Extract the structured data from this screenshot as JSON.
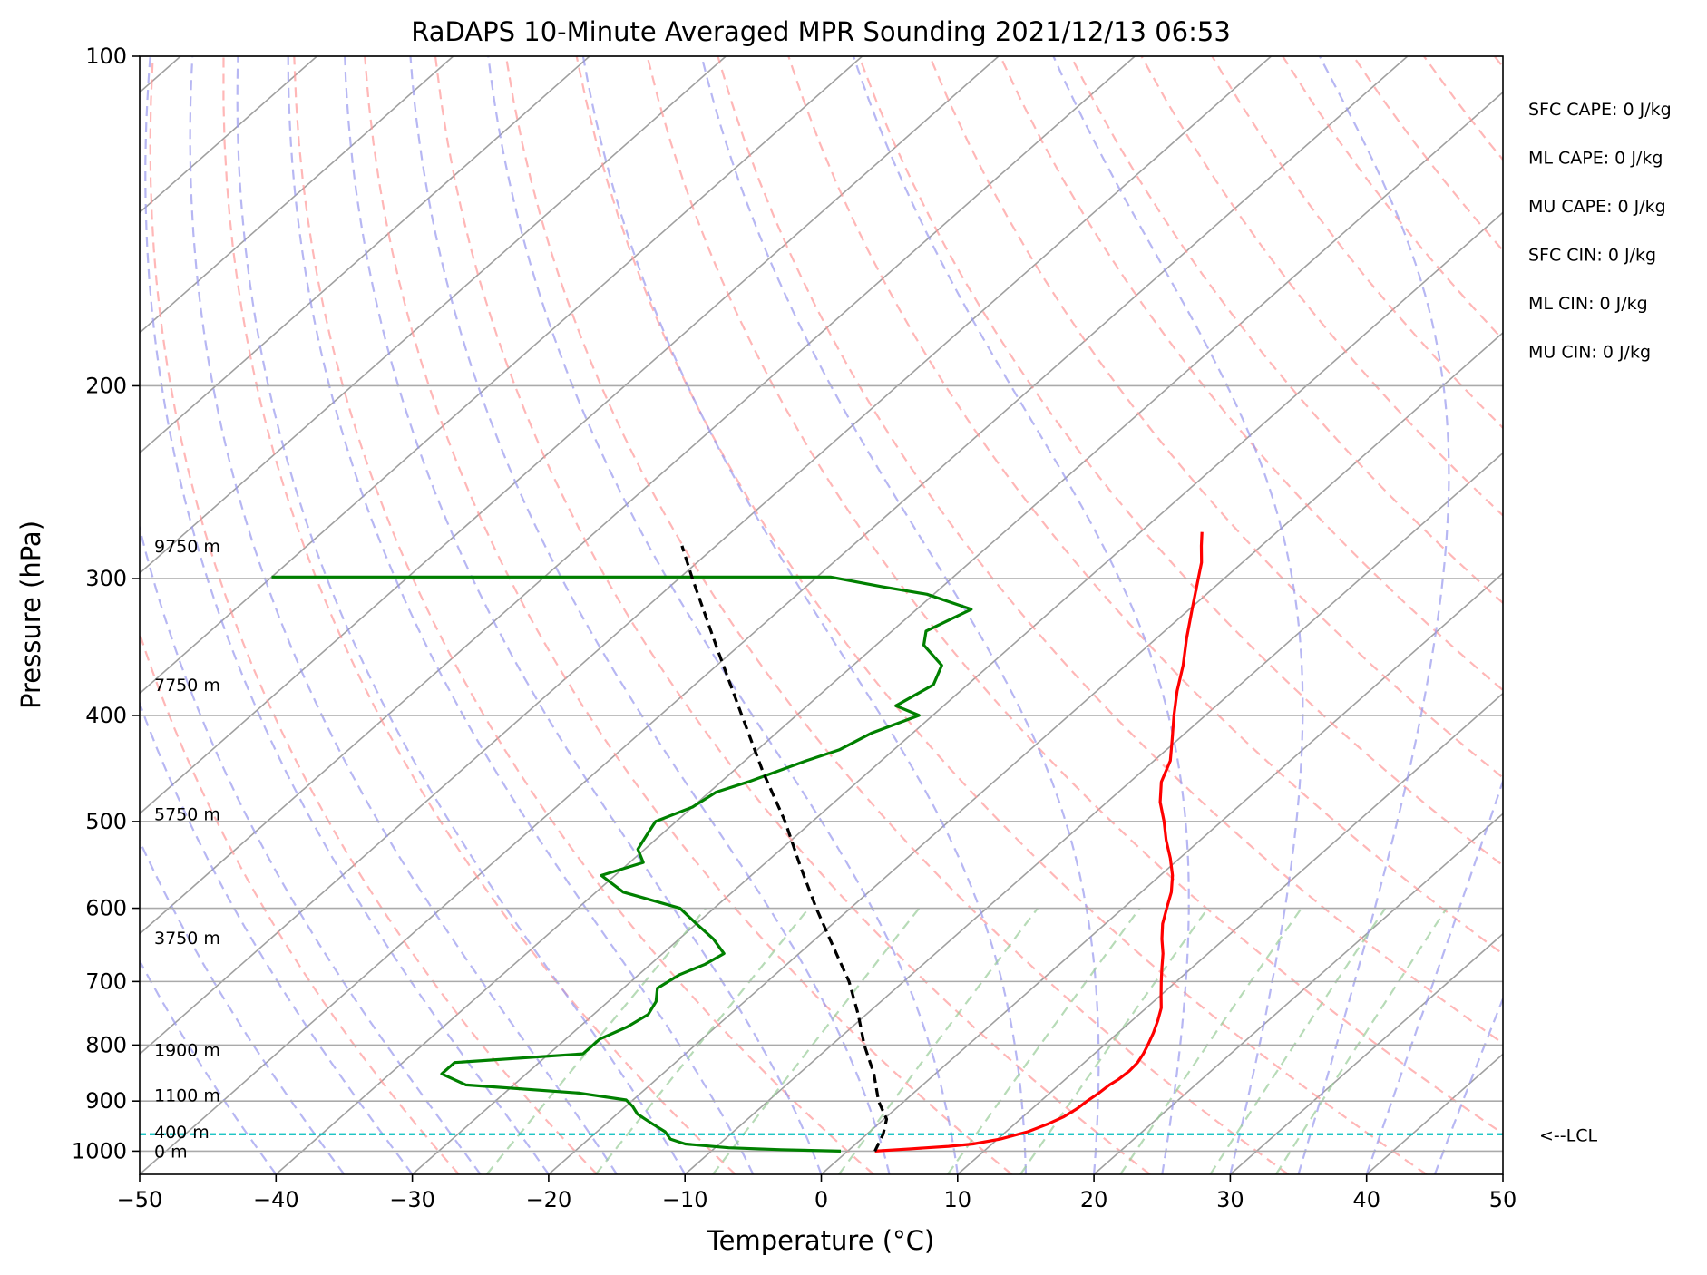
{
  "chart_data": {
    "type": "line",
    "title": "RaDAPS 10-Minute Averaged MPR Sounding 2021/12/13 06:53",
    "xlabel": "Temperature (°C)",
    "ylabel": "Pressure (hPa)",
    "xlim": [
      -50,
      50
    ],
    "ylim": [
      1050,
      100
    ],
    "y_scale": "log",
    "x_ticks": [
      "−50",
      "−40",
      "−30",
      "−20",
      "−10",
      "0",
      "10",
      "20",
      "30",
      "40",
      "50"
    ],
    "y_ticks": [
      "100",
      "200",
      "300",
      "400",
      "500",
      "600",
      "700",
      "800",
      "900",
      "1000"
    ],
    "grid": true,
    "series": [
      {
        "color": "#ff0000",
        "points": [
          [
            1000,
            2.0
          ],
          [
            995,
            4.5
          ],
          [
            990,
            7.0
          ],
          [
            985,
            8.6
          ],
          [
            975,
            10.2
          ],
          [
            960,
            11.6
          ],
          [
            945,
            12.4
          ],
          [
            930,
            13.0
          ],
          [
            915,
            13.3
          ],
          [
            900,
            13.4
          ],
          [
            885,
            13.6
          ],
          [
            870,
            13.7
          ],
          [
            860,
            13.9
          ],
          [
            845,
            14.0
          ],
          [
            830,
            13.9
          ],
          [
            815,
            13.6
          ],
          [
            800,
            13.2
          ],
          [
            780,
            12.6
          ],
          [
            760,
            11.9
          ],
          [
            740,
            11.1
          ],
          [
            720,
            10.0
          ],
          [
            700,
            8.9
          ],
          [
            680,
            7.8
          ],
          [
            660,
            6.7
          ],
          [
            640,
            5.4
          ],
          [
            620,
            4.2
          ],
          [
            600,
            3.2
          ],
          [
            580,
            2.2
          ],
          [
            560,
            0.9
          ],
          [
            540,
            -0.7
          ],
          [
            520,
            -2.5
          ],
          [
            500,
            -4.2
          ],
          [
            480,
            -6.1
          ],
          [
            460,
            -7.7
          ],
          [
            440,
            -8.8
          ],
          [
            420,
            -10.5
          ],
          [
            400,
            -12.3
          ],
          [
            380,
            -14.1
          ],
          [
            360,
            -15.8
          ],
          [
            340,
            -17.8
          ],
          [
            320,
            -19.8
          ],
          [
            300,
            -21.9
          ],
          [
            290,
            -23.0
          ],
          [
            280,
            -24.4
          ],
          [
            272,
            -25.5
          ]
        ]
      },
      {
        "color": "#008000",
        "points": [
          [
            1000,
            -0.5
          ],
          [
            997,
            -5.0
          ],
          [
            993,
            -9.0
          ],
          [
            985,
            -12.5
          ],
          [
            975,
            -14.0
          ],
          [
            960,
            -15.0
          ],
          [
            945,
            -16.5
          ],
          [
            935,
            -17.5
          ],
          [
            925,
            -18.5
          ],
          [
            910,
            -19.5
          ],
          [
            898,
            -20.5
          ],
          [
            885,
            -24.5
          ],
          [
            870,
            -33.5
          ],
          [
            850,
            -36.2
          ],
          [
            830,
            -36.2
          ],
          [
            815,
            -27.5
          ],
          [
            805,
            -27.5
          ],
          [
            790,
            -27.5
          ],
          [
            770,
            -26.5
          ],
          [
            750,
            -26.0
          ],
          [
            730,
            -26.5
          ],
          [
            710,
            -27.5
          ],
          [
            690,
            -27.0
          ],
          [
            675,
            -26.0
          ],
          [
            660,
            -25.5
          ],
          [
            640,
            -27.5
          ],
          [
            620,
            -30.0
          ],
          [
            600,
            -32.5
          ],
          [
            580,
            -38.0
          ],
          [
            560,
            -41.0
          ],
          [
            545,
            -39.0
          ],
          [
            530,
            -40.5
          ],
          [
            515,
            -41.0
          ],
          [
            500,
            -41.5
          ],
          [
            485,
            -40.0
          ],
          [
            470,
            -39.5
          ],
          [
            460,
            -38.0
          ],
          [
            440,
            -35.5
          ],
          [
            430,
            -34.0
          ],
          [
            415,
            -33.0
          ],
          [
            400,
            -31.0
          ],
          [
            392,
            -33.5
          ],
          [
            375,
            -32.5
          ],
          [
            360,
            -33.5
          ],
          [
            345,
            -36.5
          ],
          [
            335,
            -37.5
          ],
          [
            320,
            -36.0
          ],
          [
            310,
            -40.5
          ],
          [
            305,
            -44.5
          ],
          [
            299,
            -49.0
          ],
          [
            299,
            -90.0
          ]
        ]
      },
      {
        "color": "#000000",
        "dashed": true,
        "points": [
          [
            1000,
            2.0
          ],
          [
            965,
            1.2
          ],
          [
            935,
            0.2
          ],
          [
            900,
            -1.9
          ],
          [
            850,
            -4.5
          ],
          [
            800,
            -7.6
          ],
          [
            750,
            -10.6
          ],
          [
            700,
            -14.0
          ],
          [
            650,
            -18.1
          ],
          [
            600,
            -22.5
          ],
          [
            550,
            -27.1
          ],
          [
            500,
            -32.0
          ],
          [
            450,
            -37.8
          ],
          [
            400,
            -44.0
          ],
          [
            350,
            -51.0
          ],
          [
            300,
            -59.0
          ],
          [
            280,
            -62.5
          ]
        ]
      }
    ],
    "height_labels": [
      {
        "text": "9750 m",
        "p": 280
      },
      {
        "text": "7750 m",
        "p": 375
      },
      {
        "text": "5750 m",
        "p": 492
      },
      {
        "text": "3750 m",
        "p": 638
      },
      {
        "text": "1900 m",
        "p": 808
      },
      {
        "text": "1100 m",
        "p": 889
      },
      {
        "text": "400 m",
        "p": 960
      },
      {
        "text": "0 m",
        "p": 1000
      }
    ],
    "lcl": {
      "p": 965,
      "label": "<--LCL",
      "color": "#00bfbf"
    },
    "indices": [
      "SFC CAPE: 0 J/kg",
      "ML CAPE: 0 J/kg",
      "MU CAPE: 0 J/kg",
      "SFC CIN: 0 J/kg",
      "ML CIN: 0 J/kg",
      "MU CIN: 0 J/kg"
    ],
    "background_lines": {
      "dry_adiabat_color": "#ff9999",
      "moist_adiabat_color": "#9999ee",
      "mixing_ratio_color": "#99cc99",
      "isotherm_color": "#a0a0a0"
    }
  }
}
